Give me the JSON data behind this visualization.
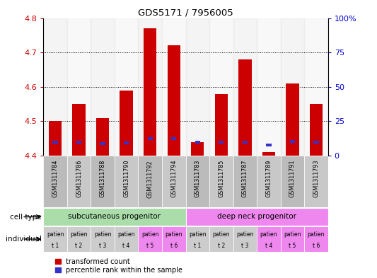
{
  "title": "GDS5171 / 7956005",
  "samples": [
    "GSM1311784",
    "GSM1311786",
    "GSM1311788",
    "GSM1311790",
    "GSM1311792",
    "GSM1311794",
    "GSM1311783",
    "GSM1311785",
    "GSM1311787",
    "GSM1311789",
    "GSM1311791",
    "GSM1311793"
  ],
  "red_values": [
    4.5,
    4.55,
    4.51,
    4.59,
    4.77,
    4.72,
    4.44,
    4.58,
    4.68,
    4.41,
    4.61,
    4.55
  ],
  "blue_values": [
    4.435,
    4.435,
    4.432,
    4.434,
    4.445,
    4.445,
    4.435,
    4.435,
    4.435,
    4.427,
    4.437,
    4.435
  ],
  "ymin": 4.4,
  "ymax": 4.8,
  "yticks_left": [
    4.4,
    4.5,
    4.6,
    4.7,
    4.8
  ],
  "yticks_right": [
    0,
    25,
    50,
    75,
    100
  ],
  "ytick_right_labels": [
    "0",
    "25",
    "50",
    "75",
    "100%"
  ],
  "bar_width": 0.55,
  "red_color": "#cc0000",
  "blue_color": "#3333cc",
  "cell_type_groups": [
    {
      "label": "subcutaneous progenitor",
      "start": 0,
      "end": 5,
      "color": "#aaddaa"
    },
    {
      "label": "deep neck progenitor",
      "start": 6,
      "end": 11,
      "color": "#ee88ee"
    }
  ],
  "individual_labels": [
    "patien\nt 1",
    "patien\nt 2",
    "patien\nt 3",
    "patien\nt 4",
    "patien\nt 5",
    "patien\nt 6",
    "patien\nt 1",
    "patien\nt 2",
    "patien\nt 3",
    "patien\nt 4",
    "patien\nt 5",
    "patien\nt 6"
  ],
  "individual_colors": [
    "#cccccc",
    "#cccccc",
    "#cccccc",
    "#cccccc",
    "#ee88ee",
    "#ee88ee",
    "#cccccc",
    "#cccccc",
    "#cccccc",
    "#ee88ee",
    "#ee88ee",
    "#ee88ee"
  ],
  "sample_bg": "#cccccc",
  "legend_red": "transformed count",
  "legend_blue": "percentile rank within the sample",
  "left_color": "#cc0000",
  "right_color": "#0000cc"
}
